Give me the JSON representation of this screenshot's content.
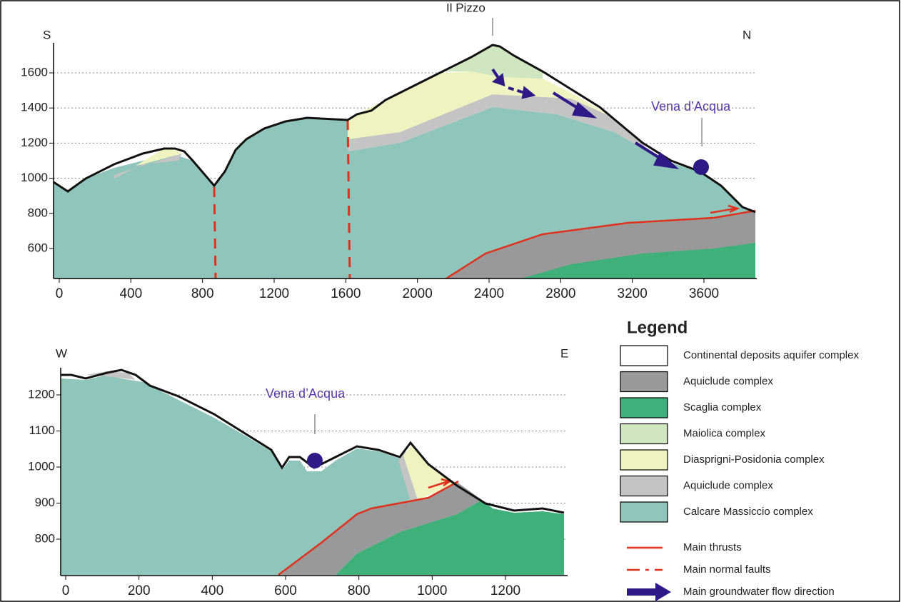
{
  "top_section": {
    "left_label": "S",
    "right_label": "N",
    "peak_label": "Il Pizzo",
    "spring_label": "Vena d’Acqua",
    "xticks": [
      0,
      400,
      800,
      1200,
      1600,
      2000,
      2400,
      2800,
      3200,
      3600
    ],
    "yticks": [
      600,
      800,
      1000,
      1200,
      1400,
      1600
    ]
  },
  "bottom_section": {
    "left_label": "W",
    "right_label": "E",
    "spring_label": "Vena d’Acqua",
    "xticks": [
      0,
      200,
      400,
      600,
      800,
      1000,
      1200
    ],
    "yticks": [
      800,
      900,
      1000,
      1100,
      1200
    ]
  },
  "legend": {
    "title": "Legend",
    "items": [
      {
        "label": "Continental deposits aquifer complex",
        "color": "#ffffff"
      },
      {
        "label": "Aquiclude complex",
        "color": "#999999"
      },
      {
        "label": "Scaglia complex",
        "color": "#3fb07a"
      },
      {
        "label": "Maiolica complex",
        "color": "#cfe6c0"
      },
      {
        "label": "Diasprigni-Posidonia complex",
        "color": "#eef3bf"
      },
      {
        "label": "Aquiclude complex",
        "color": "#c4c4c4"
      },
      {
        "label": "Calcare Massiccio complex",
        "color": "#8fc5bb"
      }
    ],
    "lines": [
      "Main thrusts",
      "Main normal faults",
      "Main groundwater flow direction"
    ]
  }
}
